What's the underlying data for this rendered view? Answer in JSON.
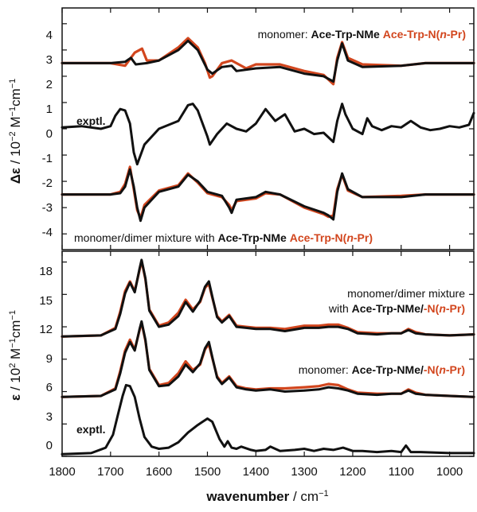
{
  "colors": {
    "model_a": "#111111",
    "model_b": "#d2461e",
    "exptl": "#111111"
  },
  "x_axis": {
    "label_bold": "wavenumber",
    "label_rest": " / cm",
    "label_sup": "−1",
    "ticks": [
      "1800",
      "1700",
      "1600",
      "1500",
      "1400",
      "1300",
      "1200",
      "1100",
      "1000"
    ]
  },
  "top_panel": {
    "ylabel_symbol": "Δε",
    "ylabel_unit": " / 10",
    "ylabel_exp1": "−2",
    "ylabel_mid": " M",
    "ylabel_exp2": "−1",
    "ylabel_end": "cm",
    "ylabel_exp3": "−1",
    "yticks": [
      "4",
      "3",
      "2",
      "1",
      "0",
      "-1",
      "-2",
      "-3",
      "-4"
    ],
    "ann_top_prefix": "monomer: ",
    "ann_top_a": "Ace-Trp-NMe",
    "ann_top_b_main": "Ace-Trp-N(",
    "ann_top_b_it": "n",
    "ann_top_b_end": "-Pr)",
    "ann_exptl": "exptl.",
    "ann_bottom_prefix": "monomer/dimer mixture with ",
    "ann_bottom_a": "Ace-Trp-NMe",
    "ann_bottom_b_main": "Ace-Trp-N(",
    "ann_bottom_b_it": "n",
    "ann_bottom_b_end": "-Pr)"
  },
  "bottom_panel": {
    "ylabel_symbol": "ε",
    "ylabel_unit": " / 10",
    "ylabel_exp1": "2",
    "ylabel_mid": " M",
    "ylabel_exp2": "−1",
    "ylabel_end": "cm",
    "ylabel_exp3": "−1",
    "yticks": [
      "18",
      "15",
      "12",
      "9",
      "6",
      "3",
      "0"
    ],
    "ann_mix_line1": "monomer/dimer mixture",
    "ann_mix_prefix": "with ",
    "ann_mix_a": "Ace-Trp-NMe/",
    "ann_mix_b_main": "-N(",
    "ann_mix_b_it": "n",
    "ann_mix_b_end": "-Pr)",
    "ann_mono_prefix": "monomer: ",
    "ann_mono_a": "Ace-Trp-NMe/",
    "ann_mono_b_main": "-N(",
    "ann_mono_b_it": "n",
    "ann_mono_b_end": "-Pr)",
    "ann_exptl": "exptl."
  },
  "chart_data": [
    {
      "type": "line",
      "panel": "VCD (top)",
      "xlim": [
        1800,
        950
      ],
      "ylim": [
        -4.6,
        4.6
      ],
      "series": [
        {
          "name": "Ace-Trp-NMe",
          "role": "monomer",
          "color": "#111111",
          "x": [
            1800,
            1700,
            1670,
            1658,
            1648,
            1625,
            1600,
            1560,
            1540,
            1520,
            1500,
            1490,
            1470,
            1450,
            1440,
            1400,
            1350,
            1300,
            1260,
            1240,
            1232,
            1222,
            1210,
            1180,
            1100,
            1050,
            950
          ],
          "y": [
            2.5,
            2.5,
            2.55,
            2.7,
            2.45,
            2.5,
            2.6,
            3.0,
            3.35,
            3.0,
            2.25,
            2.1,
            2.35,
            2.4,
            2.2,
            2.3,
            2.35,
            2.1,
            2.0,
            1.8,
            2.6,
            3.25,
            2.6,
            2.35,
            2.4,
            2.5,
            2.5
          ]
        },
        {
          "name": "Ace-Trp-N(n-Pr)",
          "role": "monomer",
          "color": "#d2461e",
          "x": [
            1800,
            1700,
            1670,
            1650,
            1635,
            1625,
            1600,
            1560,
            1540,
            1520,
            1505,
            1495,
            1490,
            1470,
            1450,
            1420,
            1400,
            1350,
            1300,
            1260,
            1240,
            1232,
            1222,
            1210,
            1180,
            1100,
            1050,
            950
          ],
          "y": [
            2.5,
            2.5,
            2.4,
            2.9,
            3.05,
            2.6,
            2.6,
            3.1,
            3.45,
            3.1,
            2.5,
            1.95,
            2.0,
            2.5,
            2.6,
            2.3,
            2.45,
            2.45,
            2.2,
            2.05,
            1.7,
            2.7,
            3.3,
            2.7,
            2.45,
            2.4,
            2.5,
            2.5
          ]
        },
        {
          "name": "exptl.",
          "role": "experiment",
          "color": "#111111",
          "x": [
            1800,
            1760,
            1720,
            1700,
            1690,
            1680,
            1670,
            1660,
            1652,
            1645,
            1630,
            1600,
            1560,
            1540,
            1530,
            1520,
            1500,
            1495,
            1480,
            1460,
            1440,
            1420,
            1400,
            1380,
            1360,
            1340,
            1320,
            1300,
            1280,
            1260,
            1240,
            1232,
            1222,
            1215,
            1200,
            1180,
            1170,
            1160,
            1140,
            1120,
            1100,
            1080,
            1060,
            1040,
            1020,
            1000,
            980,
            960,
            950
          ],
          "y": [
            0.05,
            0.1,
            0.0,
            0.1,
            0.5,
            0.75,
            0.7,
            0.2,
            -0.9,
            -1.35,
            -0.6,
            0.0,
            0.3,
            0.9,
            0.95,
            0.7,
            -0.3,
            -0.6,
            -0.2,
            0.2,
            0.0,
            -0.1,
            0.2,
            0.75,
            0.3,
            0.55,
            -0.1,
            0.0,
            -0.2,
            -0.15,
            -0.5,
            0.3,
            0.95,
            0.55,
            0.0,
            -0.2,
            0.4,
            0.1,
            -0.05,
            0.1,
            0.05,
            0.3,
            0.05,
            -0.05,
            0.0,
            0.1,
            0.05,
            0.15,
            0.6
          ]
        },
        {
          "name": "Ace-Trp-NMe",
          "role": "monomer/dimer mixture",
          "color": "#111111",
          "x": [
            1800,
            1700,
            1680,
            1670,
            1660,
            1652,
            1645,
            1638,
            1630,
            1600,
            1560,
            1540,
            1520,
            1500,
            1470,
            1455,
            1450,
            1440,
            1400,
            1380,
            1350,
            1300,
            1260,
            1250,
            1240,
            1232,
            1222,
            1210,
            1180,
            1100,
            1050,
            950
          ],
          "y": [
            -2.5,
            -2.5,
            -2.45,
            -2.2,
            -1.55,
            -2.2,
            -3.0,
            -3.5,
            -3.0,
            -2.4,
            -2.2,
            -1.75,
            -2.0,
            -2.4,
            -2.55,
            -3.0,
            -3.2,
            -2.7,
            -2.6,
            -2.4,
            -2.5,
            -2.95,
            -3.2,
            -3.3,
            -3.45,
            -2.4,
            -1.7,
            -2.3,
            -2.6,
            -2.6,
            -2.5,
            -2.5
          ]
        },
        {
          "name": "Ace-Trp-N(n-Pr)",
          "role": "monomer/dimer mixture",
          "color": "#d2461e",
          "x": [
            1800,
            1700,
            1680,
            1670,
            1660,
            1652,
            1645,
            1638,
            1630,
            1600,
            1560,
            1540,
            1520,
            1500,
            1470,
            1455,
            1450,
            1440,
            1400,
            1380,
            1350,
            1300,
            1260,
            1250,
            1240,
            1232,
            1222,
            1210,
            1180,
            1100,
            1050,
            950
          ],
          "y": [
            -2.5,
            -2.5,
            -2.4,
            -2.1,
            -1.45,
            -2.3,
            -3.1,
            -3.4,
            -2.9,
            -2.35,
            -2.15,
            -1.7,
            -2.05,
            -2.45,
            -2.6,
            -2.9,
            -3.1,
            -2.75,
            -2.65,
            -2.45,
            -2.5,
            -3.0,
            -3.25,
            -3.35,
            -3.3,
            -2.3,
            -1.75,
            -2.35,
            -2.6,
            -2.55,
            -2.5,
            -2.5
          ]
        }
      ]
    },
    {
      "type": "line",
      "panel": "IR (bottom)",
      "xlim": [
        1800,
        950
      ],
      "ylim": [
        0,
        19
      ],
      "series": [
        {
          "name": "Ace-Trp-NMe/-N(n-Pr)",
          "role": "monomer/dimer mixture",
          "color": "#111111",
          "x": [
            1800,
            1720,
            1690,
            1680,
            1670,
            1660,
            1650,
            1640,
            1636,
            1628,
            1620,
            1600,
            1580,
            1560,
            1545,
            1530,
            1515,
            1505,
            1497,
            1490,
            1480,
            1470,
            1455,
            1440,
            1420,
            1400,
            1370,
            1340,
            1300,
            1270,
            1250,
            1230,
            1210,
            1190,
            1150,
            1120,
            1100,
            1085,
            1070,
            1050,
            1000,
            950
          ],
          "y": [
            11.1,
            11.2,
            11.8,
            13.2,
            15.1,
            16.1,
            15.2,
            17.4,
            18.2,
            16.5,
            13.5,
            12.0,
            12.2,
            13.0,
            14.3,
            13.4,
            14.4,
            15.7,
            16.2,
            14.8,
            12.9,
            12.4,
            13.0,
            12.0,
            11.9,
            11.8,
            11.8,
            11.6,
            11.9,
            11.9,
            12.0,
            12.0,
            11.8,
            11.4,
            11.3,
            11.4,
            11.4,
            11.7,
            11.4,
            11.3,
            11.2,
            11.3
          ]
        },
        {
          "name": "Ace-Trp-NMe/-N(n-Pr)",
          "role": "monomer/dimer mixture (n-Pr)",
          "color": "#d2461e",
          "x": [
            1800,
            1720,
            1690,
            1680,
            1670,
            1660,
            1650,
            1640,
            1636,
            1628,
            1620,
            1600,
            1580,
            1560,
            1545,
            1530,
            1515,
            1505,
            1497,
            1490,
            1480,
            1470,
            1455,
            1440,
            1420,
            1400,
            1370,
            1340,
            1300,
            1270,
            1250,
            1230,
            1210,
            1190,
            1150,
            1120,
            1100,
            1085,
            1070,
            1050,
            1000,
            950
          ],
          "y": [
            11.1,
            11.2,
            11.9,
            13.4,
            15.3,
            16.2,
            15.3,
            17.3,
            18.1,
            16.4,
            13.6,
            12.1,
            12.4,
            13.3,
            14.5,
            13.6,
            14.3,
            15.6,
            16.0,
            14.7,
            13.0,
            12.5,
            13.1,
            12.1,
            12.0,
            11.9,
            11.9,
            11.8,
            12.1,
            12.1,
            12.2,
            12.2,
            11.9,
            11.5,
            11.4,
            11.4,
            11.4,
            11.8,
            11.5,
            11.3,
            11.2,
            11.3
          ]
        },
        {
          "name": "Ace-Trp-NMe/-N(n-Pr)",
          "role": "monomer",
          "color": "#111111",
          "x": [
            1800,
            1720,
            1690,
            1680,
            1670,
            1660,
            1650,
            1640,
            1636,
            1628,
            1620,
            1600,
            1580,
            1560,
            1545,
            1530,
            1515,
            1505,
            1497,
            1490,
            1480,
            1470,
            1455,
            1440,
            1420,
            1400,
            1370,
            1340,
            1300,
            1270,
            1250,
            1230,
            1210,
            1190,
            1150,
            1120,
            1100,
            1085,
            1070,
            1050,
            1000,
            950
          ],
          "y": [
            5.5,
            5.6,
            6.2,
            7.7,
            9.6,
            10.6,
            9.8,
            11.8,
            12.5,
            10.8,
            8.0,
            6.5,
            6.6,
            7.4,
            8.5,
            7.8,
            8.6,
            10.0,
            10.6,
            9.2,
            7.3,
            6.7,
            7.3,
            6.4,
            6.2,
            6.1,
            6.2,
            6.0,
            6.1,
            6.2,
            6.4,
            6.3,
            6.1,
            5.8,
            5.7,
            5.8,
            5.8,
            6.1,
            5.8,
            5.7,
            5.6,
            5.5
          ]
        },
        {
          "name": "Ace-Trp-NMe/-N(n-Pr)",
          "role": "monomer (n-Pr)",
          "color": "#d2461e",
          "x": [
            1800,
            1720,
            1690,
            1680,
            1670,
            1660,
            1650,
            1640,
            1636,
            1628,
            1620,
            1600,
            1580,
            1560,
            1545,
            1530,
            1515,
            1505,
            1497,
            1490,
            1480,
            1470,
            1455,
            1440,
            1420,
            1400,
            1370,
            1340,
            1300,
            1270,
            1250,
            1230,
            1210,
            1190,
            1150,
            1120,
            1100,
            1085,
            1070,
            1050,
            1000,
            950
          ],
          "y": [
            5.5,
            5.6,
            6.3,
            7.9,
            9.8,
            10.8,
            9.9,
            11.7,
            12.4,
            10.7,
            8.1,
            6.6,
            6.8,
            7.7,
            8.8,
            8.0,
            8.5,
            9.9,
            10.4,
            9.1,
            7.4,
            6.8,
            7.4,
            6.5,
            6.3,
            6.2,
            6.3,
            6.3,
            6.4,
            6.5,
            6.7,
            6.6,
            6.2,
            5.9,
            5.8,
            5.8,
            5.8,
            6.2,
            5.9,
            5.7,
            5.6,
            5.5
          ]
        },
        {
          "name": "exptl.",
          "role": "experiment",
          "color": "#111111",
          "x": [
            1800,
            1740,
            1710,
            1695,
            1685,
            1675,
            1668,
            1660,
            1650,
            1640,
            1630,
            1615,
            1600,
            1580,
            1560,
            1540,
            1520,
            1510,
            1500,
            1490,
            1475,
            1465,
            1458,
            1450,
            1440,
            1430,
            1410,
            1400,
            1380,
            1370,
            1350,
            1320,
            1300,
            1280,
            1260,
            1240,
            1220,
            1200,
            1180,
            1150,
            1120,
            1100,
            1090,
            1080,
            1060,
            1000,
            950
          ],
          "y": [
            0.2,
            0.3,
            0.8,
            2.0,
            3.8,
            5.6,
            6.6,
            6.5,
            5.5,
            3.5,
            1.8,
            0.9,
            0.7,
            0.8,
            1.3,
            2.2,
            2.9,
            3.2,
            3.5,
            3.2,
            1.6,
            0.9,
            1.4,
            0.8,
            0.7,
            0.9,
            0.6,
            0.5,
            0.6,
            0.9,
            0.5,
            0.6,
            0.7,
            0.5,
            0.7,
            0.6,
            0.8,
            0.5,
            0.5,
            0.4,
            0.5,
            0.4,
            1.0,
            0.4,
            0.4,
            0.3,
            0.3
          ]
        }
      ]
    }
  ]
}
